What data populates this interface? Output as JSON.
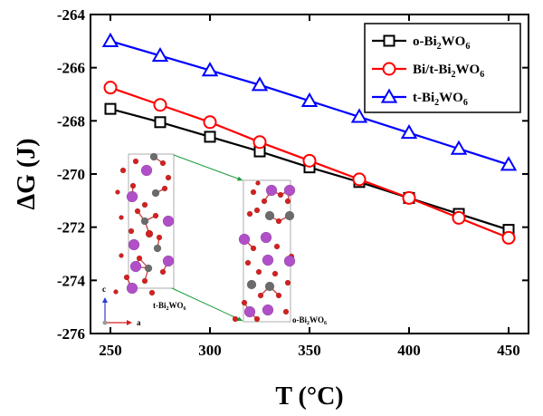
{
  "chart_data": {
    "type": "line",
    "xlabel": "T (°C)",
    "ylabel": "ΔG (J)",
    "xlim": [
      240,
      460
    ],
    "ylim": [
      -276,
      -264
    ],
    "xticks": [
      250,
      300,
      350,
      400,
      450
    ],
    "yticks": [
      -276,
      -274,
      -272,
      -270,
      -268,
      -266,
      -264
    ],
    "x": [
      250,
      275,
      300,
      325,
      350,
      375,
      400,
      425,
      450
    ],
    "series": [
      {
        "name": "o-Bi2WO6",
        "name_main": "o-Bi",
        "sub1": "2",
        "mid": "WO",
        "sub2": "6",
        "marker": "square",
        "color": "#000000",
        "values": [
          -267.55,
          -268.05,
          -268.6,
          -269.15,
          -269.75,
          -270.3,
          -270.9,
          -271.5,
          -272.1
        ]
      },
      {
        "name": "Bi/t-Bi2WO6",
        "name_main": "Bi/t-Bi",
        "sub1": "2",
        "mid": "WO",
        "sub2": "6",
        "marker": "circle",
        "color": "#ff0000",
        "values": [
          -266.75,
          -267.4,
          -268.05,
          -268.8,
          -269.5,
          -270.2,
          -270.9,
          -271.65,
          -272.4
        ]
      },
      {
        "name": "t-Bi2WO6",
        "name_main": "t-Bi",
        "sub1": "2",
        "mid": "WO",
        "sub2": "6",
        "marker": "triangle",
        "color": "#0000ff",
        "values": [
          -265.0,
          -265.55,
          -266.1,
          -266.65,
          -267.25,
          -267.85,
          -268.45,
          -269.05,
          -269.65
        ]
      }
    ],
    "legend_position": "top-right",
    "inset": {
      "left_label": {
        "main": "t-Bi",
        "sub1": "2",
        "mid": "WO",
        "sub2": "6"
      },
      "right_label": {
        "main": "o-Bi",
        "sub1": "2",
        "mid": "WO",
        "sub2": "6"
      },
      "axis_c": "c",
      "axis_a": "a"
    }
  },
  "colors": {
    "purple_atom": "#b04fc8",
    "red_atom": "#d42020",
    "gray_atom": "#6b6b6b",
    "arrow": "#1a9a3a"
  }
}
